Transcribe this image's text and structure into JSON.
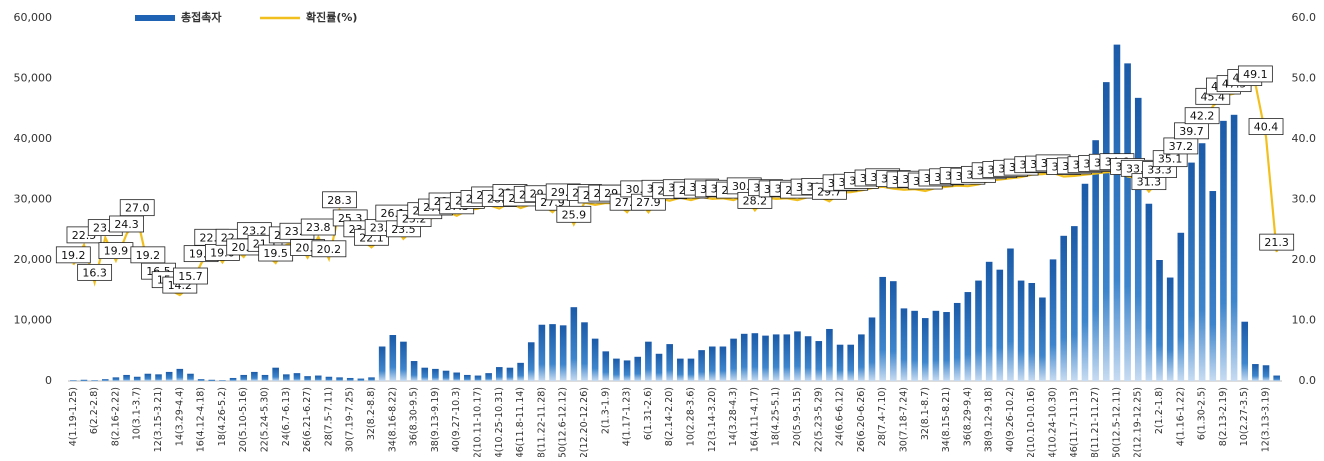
{
  "chart_data": {
    "type": "bar",
    "ylim": [
      0,
      60000
    ],
    "yticks": [
      0,
      {
        "value": 10000,
        "label": "10,000"
      },
      {
        "value": 20000,
        "label": "20,000"
      },
      {
        "value": 30000,
        "label": "30,000"
      },
      {
        "value": 40000,
        "label": "40,000"
      },
      {
        "value": 50000,
        "label": "50,000"
      },
      {
        "value": 60000,
        "label": "60,000"
      }
    ],
    "y2lim": [
      0,
      60
    ],
    "y2ticks": [
      {
        "value": 0,
        "label": "0.0"
      },
      {
        "value": 10,
        "label": "10.0"
      },
      {
        "value": 20,
        "label": "20.0"
      },
      {
        "value": 30,
        "label": "30.0"
      },
      {
        "value": 40,
        "label": "40.0"
      },
      {
        "value": 50,
        "label": "50.0"
      },
      {
        "value": 60,
        "label": "60.0"
      }
    ],
    "categories": [
      "4(1.19-1.25)",
      null,
      "6(2.2-2.8)",
      null,
      "8(2.16-2.22)",
      null,
      "10(3.1-3.7)",
      null,
      "12(3.15-3.21)",
      null,
      "14(3.29-4.4)",
      null,
      "16(4.12-4.18)",
      null,
      "18(4.26-5.2)",
      null,
      "20(5.10-5.16)",
      null,
      "22(5.24-5.30)",
      null,
      "24(6.7-6.13)",
      null,
      "26(6.21-6.27)",
      null,
      "28(7.5-7.11)",
      null,
      "30(7.19-7.25)",
      null,
      "32(8.2-8.8)",
      null,
      "34(8.16-8.22)",
      null,
      "36(8.30-9.5)",
      null,
      "38(9.13-9.19)",
      null,
      "40(9.27-10.3)",
      null,
      "42(10.11-10.17)",
      null,
      "44(10.25-10.31)",
      null,
      "46(11.8-11.14)",
      null,
      "48(11.22-11.28)",
      null,
      "50(12.6-12.12)",
      null,
      "52(12.20-12.26)",
      null,
      "2(1.3-1.9)",
      null,
      "4(1.17-1.23)",
      null,
      "6(1.31-2.6)",
      null,
      "8(2.14-2.20)",
      null,
      "10(2.28-3.6)",
      null,
      "12(3.14-3.20)",
      null,
      "14(3.28-4.3)",
      null,
      "16(4.11-4.17)",
      null,
      "18(4.25-5.1)",
      null,
      "20(5.9-5.15)",
      null,
      "22(5.23-5.29)",
      null,
      "24(6.6-6.12)",
      null,
      "26(6.20-6.26)",
      null,
      "28(7.4-7.10)",
      null,
      "30(7.18-7.24)",
      null,
      "32(8.1-8.7)",
      null,
      "34(8.15-8.21)",
      null,
      "36(8.29-9.4)",
      null,
      "38(9.12-9.18)",
      null,
      "40(9.26-10.2)",
      null,
      "42(10.10-10.16)",
      null,
      "44(10.24-10.30)",
      null,
      "46(11.7-11.13)",
      null,
      "48(11.21-11.27)",
      null,
      "50(12.5-12.11)",
      null,
      "52(12.19-12.25)",
      null,
      "2(1.2-1.8)",
      null,
      "4(1.16-1.22)",
      null,
      "6(1.30-2.5)",
      null,
      "8(2.13-2.19)",
      null,
      "10(2.27-3.5)",
      null,
      "12(3.13-3.19)",
      null
    ],
    "series": [
      {
        "name": "총접촉자",
        "type": "bar",
        "color": "#1f64b4",
        "values": [
          100,
          200,
          100,
          300,
          600,
          1000,
          700,
          1200,
          1100,
          1500,
          2000,
          1200,
          300,
          200,
          100,
          500,
          1000,
          1500,
          1000,
          2200,
          1100,
          1300,
          800,
          900,
          700,
          600,
          500,
          400,
          600,
          5700,
          7600,
          6500,
          3300,
          2200,
          2000,
          1700,
          1400,
          1000,
          900,
          1300,
          2300,
          2200,
          3000,
          6400,
          9300,
          9400,
          9200,
          12200,
          9700,
          7000,
          4900,
          3700,
          3400,
          4000,
          6500,
          4500,
          6100,
          3700,
          3700,
          5100,
          5700,
          5700,
          7000,
          7800,
          7900,
          7500,
          7700,
          7700,
          8200,
          7400,
          6600,
          8600,
          6000,
          6000,
          7700,
          10500,
          17200,
          16500,
          12000,
          11600,
          10400,
          11600,
          11400,
          12900,
          14700,
          16600,
          19700,
          18400,
          21900,
          16600,
          16200,
          13800,
          20100,
          24000,
          25600,
          32600,
          39800,
          49400,
          55600,
          52500,
          46800,
          29300,
          20000,
          17100,
          24500,
          36100,
          39300,
          31400,
          43000,
          44000,
          9800,
          2800,
          2600,
          900
        ]
      },
      {
        "name": "확진률(%)",
        "type": "line",
        "axis": "y2",
        "color": "#f2c01e",
        "values": [
          19.2,
          22.5,
          16.3,
          23.7,
          19.9,
          24.3,
          27.0,
          19.2,
          16.5,
          15.1,
          14.2,
          15.7,
          19.4,
          22.1,
          19.6,
          22.1,
          20.5,
          23.2,
          21.1,
          19.5,
          22.5,
          23.1,
          20.4,
          23.8,
          20.2,
          28.3,
          25.3,
          23.5,
          22.1,
          23.7,
          26.1,
          23.5,
          25.2,
          26.5,
          27.1,
          28.1,
          27.3,
          28.2,
          28.5,
          29.1,
          28.5,
          29.5,
          28.6,
          29.2,
          29.3,
          27.9,
          29.6,
          25.9,
          29.5,
          29.1,
          29.4,
          29.4,
          27.9,
          30.1,
          27.9,
          30.2,
          29.8,
          30.3,
          29.9,
          30.4,
          30.1,
          30.2,
          29.9,
          30.6,
          28.2,
          30.3,
          30.1,
          30.2,
          29.9,
          30.4,
          30.5,
          29.7,
          31.1,
          31.2,
          31.5,
          31.9,
          32.1,
          31.8,
          31.6,
          31.7,
          31.4,
          31.9,
          32.1,
          32.3,
          32.2,
          32.5,
          33.1,
          33.3,
          33.5,
          33.7,
          34.1,
          34.2,
          34.4,
          33.8,
          33.9,
          34.1,
          34.3,
          34.5,
          34.6,
          33.8,
          33.5,
          31.3,
          33.3,
          35.1,
          37.2,
          39.7,
          42.2,
          45.4,
          47.1,
          47.5,
          48.5,
          49.1,
          40.4,
          21.3
        ],
        "value_labels": [
          "19.2",
          "22.5",
          "16.3",
          "23.7",
          "19.9",
          "24.3",
          "27.0",
          "19.2",
          "16.5",
          "15.1",
          "14.2",
          "15.7",
          "19.4",
          "22.1",
          "19.6",
          "22.1",
          "20.5",
          "23.2",
          "21.1",
          "19.5",
          "22.5",
          "23.1",
          "20.4",
          "23.8",
          "20.2",
          "28.3",
          "25.3",
          "23.5",
          "22.1",
          "23.7",
          "26.1",
          "23.5",
          "25.2",
          "26.5",
          "27.1",
          "28.1",
          "27.3",
          "28.2",
          "28.5",
          "29.1",
          "28.5",
          "29.5",
          "28.6",
          "29.2",
          "29.3",
          "27.9",
          "29.6",
          "25.9",
          "29.5",
          "29.1",
          "29.4",
          "29.4",
          "27.9",
          "30.1",
          "27.9",
          "30.2",
          "29.8",
          "30.3",
          "29.9",
          "30.4",
          "30.1",
          "30.2",
          "29.9",
          "30.6",
          "28.2",
          "30.3",
          "30.1",
          "30.2",
          "29.9",
          "30.4",
          "30.5",
          "29.7",
          "31.1",
          "31.2",
          "31.5",
          "31.9",
          "32.1",
          "31.8",
          "31.6",
          "31.7",
          "31.4",
          "31.9",
          "32.1",
          "32.3",
          "32.2",
          "32.5",
          "33.1",
          "33.3",
          "33.5",
          "33.7",
          "34.1",
          "34.2",
          "34.4",
          "33.8",
          "33.9",
          "34.1",
          "34.3",
          "34.5",
          "34.6",
          "33.8",
          "33.5",
          "31.3",
          "33.3",
          "35.1",
          "37.2",
          "39.7",
          "42.2",
          "45.4",
          "47.1",
          "47.5",
          "48.5",
          "49.1",
          "40.4",
          "21.3"
        ]
      }
    ]
  }
}
